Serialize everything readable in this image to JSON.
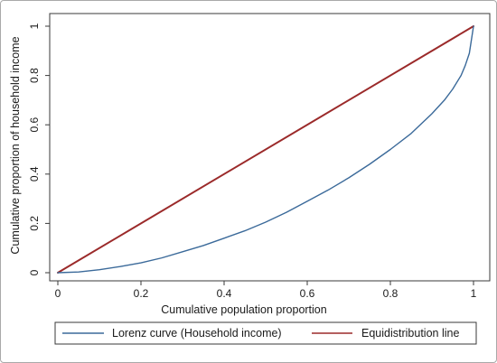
{
  "chart_data": {
    "type": "line",
    "title": "",
    "xlabel": "Cumulative population proportion",
    "ylabel": "Cumulative proportion of household income",
    "xlim": [
      0,
      1
    ],
    "ylim": [
      0,
      1
    ],
    "x_ticks": [
      0,
      0.2,
      0.4,
      0.6,
      0.8,
      1
    ],
    "x_tick_labels": [
      "0",
      "0.2",
      "0.4",
      "0.6",
      "0.8",
      "1"
    ],
    "y_ticks": [
      0,
      0.2,
      0.4,
      0.6,
      0.8,
      1
    ],
    "y_tick_labels": [
      "0",
      "0.2",
      "0.4",
      "0.6",
      "0.8",
      "1"
    ],
    "grid": false,
    "legend_position": "bottom",
    "series": [
      {
        "name": "Lorenz curve (Household income)",
        "color": "#3b6a9a",
        "x": [
          0,
          0.05,
          0.1,
          0.15,
          0.2,
          0.25,
          0.3,
          0.35,
          0.4,
          0.45,
          0.5,
          0.55,
          0.6,
          0.65,
          0.7,
          0.75,
          0.8,
          0.85,
          0.9,
          0.93,
          0.95,
          0.97,
          0.98,
          0.99,
          1
        ],
        "y": [
          0,
          0.003,
          0.012,
          0.025,
          0.04,
          0.06,
          0.085,
          0.11,
          0.14,
          0.17,
          0.205,
          0.245,
          0.29,
          0.335,
          0.385,
          0.44,
          0.5,
          0.565,
          0.645,
          0.7,
          0.745,
          0.8,
          0.84,
          0.89,
          1
        ]
      },
      {
        "name": "Equidistribution line",
        "color": "#9b2a2a",
        "x": [
          0,
          1
        ],
        "y": [
          0,
          1
        ]
      }
    ]
  }
}
